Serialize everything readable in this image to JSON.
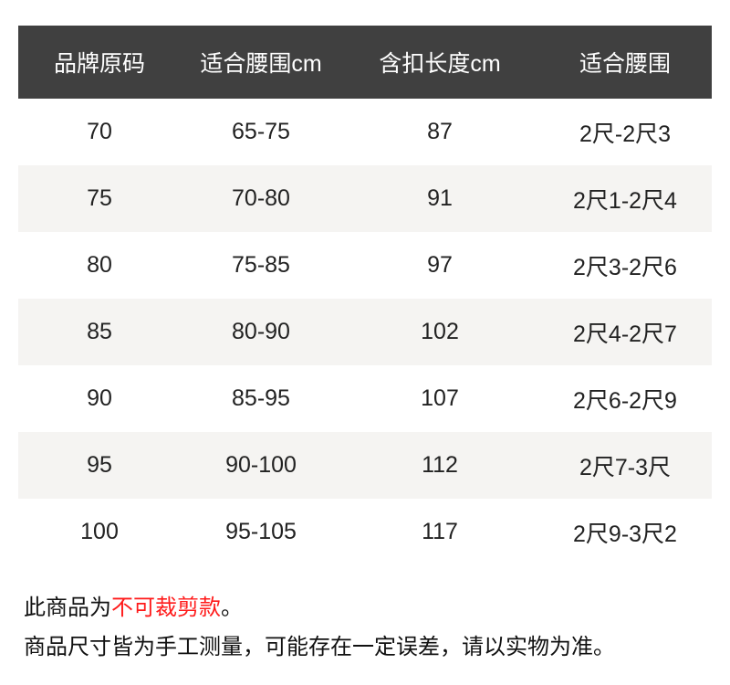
{
  "colors": {
    "header_bg": "#404040",
    "alt_row_bg": "#f5f4f2",
    "highlight": "#ff1a1a"
  },
  "table": {
    "headers": [
      "品牌原码",
      "适合腰围cm",
      "含扣长度cm",
      "适合腰围"
    ],
    "rows": [
      [
        "70",
        "65-75",
        "87",
        "2尺-2尺3"
      ],
      [
        "75",
        "70-80",
        "91",
        "2尺1-2尺4"
      ],
      [
        "80",
        "75-85",
        "97",
        "2尺3-2尺6"
      ],
      [
        "85",
        "80-90",
        "102",
        "2尺4-2尺7"
      ],
      [
        "90",
        "85-95",
        "107",
        "2尺6-2尺9"
      ],
      [
        "95",
        "90-100",
        "112",
        "2尺7-3尺"
      ],
      [
        "100",
        "95-105",
        "117",
        "2尺9-3尺2"
      ]
    ]
  },
  "notes": {
    "line1_prefix": "此商品为",
    "line1_highlight": "不可裁剪款",
    "line1_suffix": "。",
    "line2": "商品尺寸皆为手工测量，可能存在一定误差，请以实物为准。"
  }
}
